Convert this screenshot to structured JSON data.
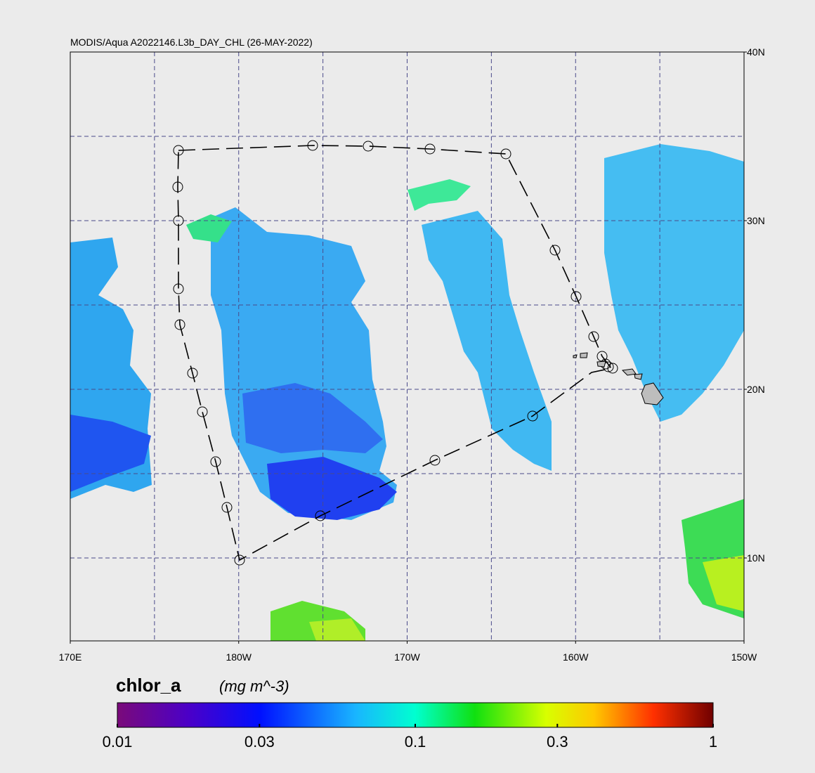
{
  "title": "MODIS/Aqua A2022146.L3b_DAY_CHL (26-MAY-2022)",
  "map": {
    "lon_range": [
      170,
      210
    ],
    "lat_range": [
      5,
      40
    ],
    "grid_step": 5,
    "lat_ticks": [
      {
        "value": 40,
        "label": "40N"
      },
      {
        "value": 30,
        "label": "30N"
      },
      {
        "value": 20,
        "label": "20N"
      },
      {
        "value": 10,
        "label": "10N"
      }
    ],
    "lon_ticks": [
      {
        "value": 170,
        "label": "170E"
      },
      {
        "value": 180,
        "label": "180W"
      },
      {
        "value": 190,
        "label": "170W"
      },
      {
        "value": 200,
        "label": "160W"
      },
      {
        "value": 210,
        "label": "150W"
      }
    ]
  },
  "colorbar": {
    "label": "chlor_a",
    "units": "(mg m^-3)",
    "log_scale": true,
    "range": [
      0.01,
      1
    ],
    "ticks": [
      0.01,
      0.03,
      0.1,
      0.3,
      1
    ]
  }
}
